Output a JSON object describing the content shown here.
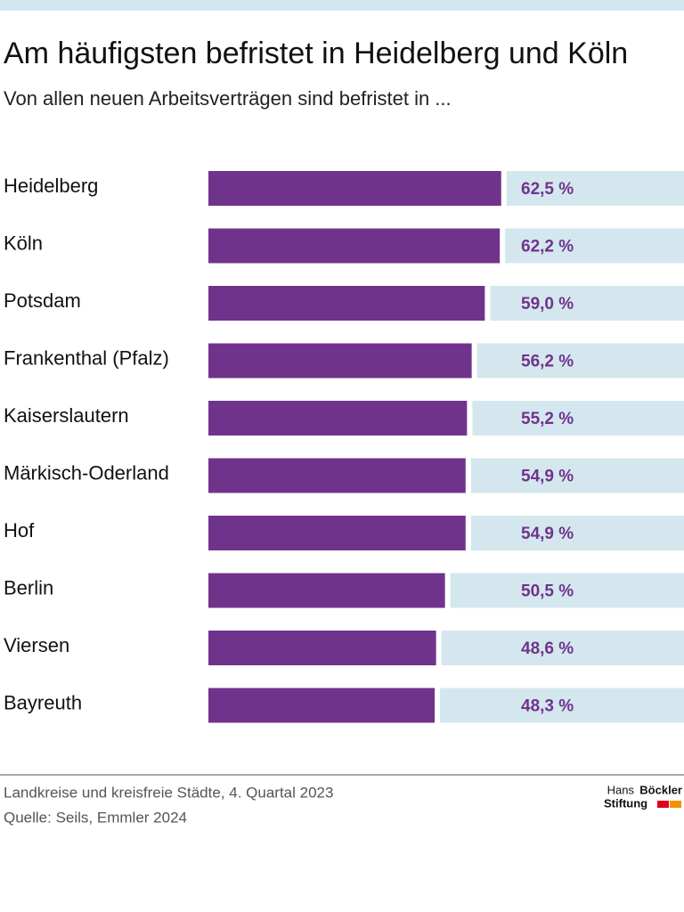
{
  "chart_data": {
    "type": "bar",
    "orientation": "horizontal",
    "title": "Am häufigsten befristet in Heidelberg und Köln",
    "subtitle": "Von allen neuen Arbeitsverträgen sind befristet in ...",
    "categories": [
      "Heidelberg",
      "Köln",
      "Potsdam",
      "Frankenthal (Pfalz)",
      "Kaiserslautern",
      "Märkisch-Oderland",
      "Hof",
      "Berlin",
      "Viersen",
      "Bayreuth"
    ],
    "values": [
      62.5,
      62.2,
      59.0,
      56.2,
      55.2,
      54.9,
      54.9,
      50.5,
      48.6,
      48.3
    ],
    "value_labels": [
      "62,5 %",
      "62,2 %",
      "59,0 %",
      "56,2 %",
      "55,2 %",
      "54,9 %",
      "54,9 %",
      "50,5 %",
      "48,6 %",
      "48,3 %"
    ],
    "xlim": [
      0,
      100
    ],
    "color": "#70338c",
    "track_color": "#d4e7ee",
    "notes": [
      "Landkreise und kreisfreie Städte, 4. Quartal 2023",
      "Quelle: Seils, Emmler 2024"
    ]
  },
  "logo": {
    "line1_a": "Hans",
    "line1_b": "Böckler",
    "line2": "Stiftung"
  }
}
